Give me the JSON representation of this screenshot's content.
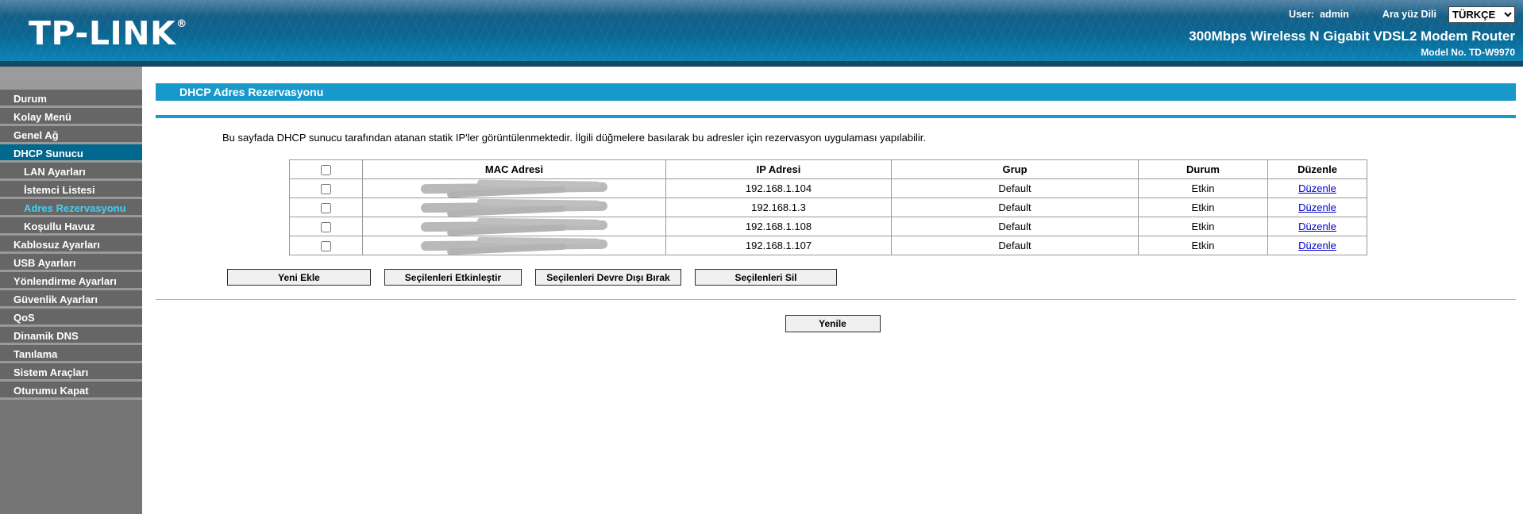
{
  "header": {
    "logo": "TP-LINK",
    "logo_reg": "®",
    "user_label": "User:",
    "user_value": "admin",
    "language_label": "Ara yüz Dili",
    "language_value": "TÜRKÇE",
    "product_title": "300Mbps Wireless N Gigabit VDSL2 Modem Router",
    "model": "Model No. TD-W9970"
  },
  "sidebar": {
    "items": [
      {
        "label": "Durum",
        "type": "top"
      },
      {
        "label": "Kolay Menü",
        "type": "top"
      },
      {
        "label": "Genel Ağ",
        "type": "top"
      },
      {
        "label": "DHCP Sunucu",
        "type": "top",
        "active": true
      },
      {
        "label": "LAN Ayarları",
        "type": "sub"
      },
      {
        "label": "İstemci Listesi",
        "type": "sub"
      },
      {
        "label": "Adres Rezervasyonu",
        "type": "sub",
        "selected": true
      },
      {
        "label": "Koşullu Havuz",
        "type": "sub"
      },
      {
        "label": "Kablosuz Ayarları",
        "type": "top"
      },
      {
        "label": "USB Ayarları",
        "type": "top"
      },
      {
        "label": "Yönlendirme Ayarları",
        "type": "top"
      },
      {
        "label": "Güvenlik Ayarları",
        "type": "top"
      },
      {
        "label": "QoS",
        "type": "top"
      },
      {
        "label": "Dinamik DNS",
        "type": "top"
      },
      {
        "label": "Tanılama",
        "type": "top"
      },
      {
        "label": "Sistem Araçları",
        "type": "top"
      },
      {
        "label": "Oturumu Kapat",
        "type": "top"
      }
    ]
  },
  "main": {
    "page_title": "DHCP Adres Rezervasyonu",
    "description": "Bu sayfada DHCP sunucu tarafından atanan statik IP'ler görüntülenmektedir. İlgili düğmelere basılarak bu adresler için rezervasyon uygulaması yapılabilir.",
    "table": {
      "headers": [
        "MAC Adresi",
        "IP Adresi",
        "Grup",
        "Durum",
        "Düzenle"
      ],
      "rows": [
        {
          "mac_redacted": true,
          "ip": "192.168.1.104",
          "group": "Default",
          "status": "Etkin",
          "edit": "Düzenle"
        },
        {
          "mac_redacted": true,
          "ip": "192.168.1.3",
          "group": "Default",
          "status": "Etkin",
          "edit": "Düzenle"
        },
        {
          "mac_redacted": true,
          "ip": "192.168.1.108",
          "group": "Default",
          "status": "Etkin",
          "edit": "Düzenle"
        },
        {
          "mac_redacted": true,
          "ip": "192.168.1.107",
          "group": "Default",
          "status": "Etkin",
          "edit": "Düzenle"
        }
      ]
    },
    "buttons": {
      "add_new": "Yeni Ekle",
      "enable_selected": "Seçilenleri Etkinleştir",
      "disable_selected": "Seçilenleri Devre Dışı Bırak",
      "delete_selected": "Seçilenleri Sil",
      "refresh": "Yenile"
    }
  },
  "colors": {
    "title_bar": "#1899CC",
    "sidebar_active_bg": "#00688F",
    "sidebar_active_text": "#45CFF5",
    "link": "#0000CC",
    "header_strip": "#164A63"
  }
}
